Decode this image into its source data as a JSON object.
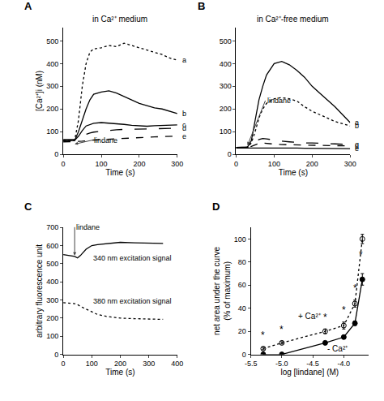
{
  "chart_data": [
    {
      "panel": "A",
      "type": "line",
      "title": "in Ca²⁺ medium",
      "xlabel": "Time (s)",
      "ylabel": "[Ca²⁺]i (nM)",
      "x": [
        0,
        20,
        30,
        40,
        50,
        60,
        70,
        80,
        100,
        120,
        140,
        160,
        180,
        200,
        220,
        240,
        260,
        280,
        300
      ],
      "xlim": [
        0,
        300
      ],
      "xticks": [
        0,
        100,
        200,
        300
      ],
      "ylim": [
        0,
        560
      ],
      "yticks": [
        0,
        100,
        200,
        300,
        400,
        500
      ],
      "series": [
        {
          "name": "a",
          "line_style": "dotted",
          "values": [
            62,
            60,
            62,
            150,
            300,
            400,
            450,
            465,
            470,
            480,
            475,
            490,
            480,
            470,
            460,
            450,
            440,
            425,
            415
          ]
        },
        {
          "name": "b",
          "line_style": "solid",
          "values": [
            60,
            62,
            62,
            100,
            150,
            200,
            240,
            265,
            275,
            280,
            270,
            255,
            240,
            225,
            215,
            205,
            200,
            190,
            180
          ]
        },
        {
          "name": "c",
          "line_style": "solid",
          "values": [
            60,
            60,
            62,
            80,
            105,
            125,
            132,
            137,
            140,
            138,
            135,
            132,
            128,
            125,
            124,
            126,
            128,
            128,
            130
          ]
        },
        {
          "name": "d",
          "line_style": "longdash",
          "values": [
            65,
            64,
            65,
            70,
            80,
            88,
            94,
            98,
            102,
            106,
            108,
            110,
            111,
            112,
            113,
            114,
            114,
            115,
            115
          ]
        },
        {
          "name": "e",
          "line_style": "dashed",
          "values": [
            55,
            55,
            56,
            57,
            58,
            60,
            62,
            63,
            65,
            67,
            69,
            71,
            73,
            75,
            76,
            77,
            78,
            79,
            80
          ]
        }
      ],
      "annotations": [
        {
          "text": "lindane",
          "x": 30,
          "y": 45
        }
      ]
    },
    {
      "panel": "B",
      "type": "line",
      "title": "in Ca²⁺-free medium",
      "xlabel": "Time (s)",
      "x": [
        0,
        20,
        30,
        40,
        50,
        60,
        70,
        80,
        100,
        120,
        140,
        160,
        180,
        200,
        220,
        240,
        260,
        280,
        300
      ],
      "xlim": [
        0,
        300
      ],
      "xticks": [
        0,
        100,
        200,
        300
      ],
      "ylim": [
        0,
        560
      ],
      "yticks": [
        0,
        100,
        200,
        300,
        400,
        500
      ],
      "series": [
        {
          "name": "a",
          "line_style": "solid",
          "values": [
            30,
            30,
            32,
            60,
            150,
            240,
            300,
            350,
            400,
            410,
            395,
            370,
            340,
            300,
            270,
            240,
            210,
            175,
            140
          ]
        },
        {
          "name": "b",
          "line_style": "dotted",
          "values": [
            30,
            30,
            31,
            50,
            100,
            160,
            200,
            225,
            245,
            250,
            245,
            235,
            210,
            190,
            175,
            160,
            145,
            135,
            125
          ]
        },
        {
          "name": "c",
          "line_style": "longdash",
          "values": [
            30,
            30,
            31,
            40,
            55,
            65,
            70,
            68,
            62,
            58,
            55,
            52,
            50,
            50,
            48,
            47,
            46,
            45,
            45
          ]
        },
        {
          "name": "d",
          "line_style": "dashed",
          "values": [
            30,
            30,
            30,
            35,
            42,
            48,
            50,
            48,
            45,
            43,
            42,
            41,
            40,
            40,
            40,
            39,
            38,
            38,
            37
          ]
        },
        {
          "name": "e",
          "line_style": "solid",
          "values": [
            28,
            28,
            28,
            29,
            30,
            30,
            30,
            30,
            29,
            29,
            28,
            28,
            27,
            27,
            26,
            26,
            26,
            25,
            25
          ]
        }
      ],
      "annotations": [
        {
          "text": "lindane",
          "x": 30,
          "y": 40
        }
      ]
    },
    {
      "panel": "C",
      "type": "line",
      "xlabel": "Time (s)",
      "ylabel": "arbitrary fluorescence unit",
      "x": [
        0,
        20,
        40,
        50,
        60,
        80,
        100,
        120,
        150,
        200,
        250,
        300,
        350
      ],
      "xlim": [
        0,
        400
      ],
      "xticks": [
        0,
        100,
        200,
        300,
        400
      ],
      "ylim": [
        0,
        700
      ],
      "yticks": [
        0,
        100,
        200,
        300,
        400,
        500,
        600,
        700
      ],
      "series": [
        {
          "name": "340 nm excitation signal",
          "line_style": "solid",
          "values": [
            550,
            545,
            540,
            532,
            545,
            580,
            600,
            605,
            610,
            618,
            615,
            614,
            612
          ]
        },
        {
          "name": "380 nm excitation signal",
          "line_style": "dotted",
          "values": [
            285,
            283,
            280,
            275,
            265,
            250,
            235,
            220,
            210,
            200,
            197,
            195,
            193
          ]
        }
      ],
      "annotations": [
        {
          "text": "lindane",
          "x": 40,
          "y": 545
        }
      ]
    },
    {
      "panel": "D",
      "type": "line",
      "xlabel": "log [lindane] (M)",
      "ylabel": [
        "net area under the curve",
        "(% of maximum)"
      ],
      "x": [
        -5.3,
        -5.0,
        -4.3,
        -4.0,
        -3.82,
        -3.7
      ],
      "xlim": [
        -5.5,
        -3.6
      ],
      "xticks": [
        {
          "value": -5.5,
          "label": "-5.5"
        },
        {
          "value": -5.0,
          "label": "-5.0"
        },
        {
          "value": -4.5,
          "label": "-4.5"
        },
        {
          "value": -4.0,
          "label": "-4.0"
        }
      ],
      "ylim": [
        0,
        110
      ],
      "yticks": [
        0,
        20,
        40,
        60,
        80,
        100
      ],
      "series": [
        {
          "line_style": "dotted",
          "marker": "open circle",
          "values": [
            5,
            10,
            20,
            25,
            44,
            100
          ],
          "errors": [
            1,
            1,
            2,
            3,
            3,
            4
          ]
        },
        {
          "line_style": "solid",
          "marker": "filled circle",
          "values": [
            0,
            0,
            10,
            15,
            27,
            65
          ],
          "errors": [
            0.5,
            0.5,
            1.5,
            1.5,
            2,
            5
          ]
        }
      ],
      "annotations": [
        {
          "text": "+ Ca²⁺",
          "x": -4.55,
          "y": 33
        },
        {
          "text": "- Ca²⁺",
          "x": -4.1,
          "y": 5
        },
        {
          "text": "*",
          "x": -5.3,
          "y": 10
        },
        {
          "text": "*",
          "x": -5.0,
          "y": 15
        },
        {
          "text": "*",
          "x": -4.3,
          "y": 26
        },
        {
          "text": "*",
          "x": -4.0,
          "y": 32
        },
        {
          "text": "*",
          "x": -3.82,
          "y": 51
        },
        {
          "text": "*",
          "x": -3.72,
          "y": 80
        }
      ]
    }
  ]
}
